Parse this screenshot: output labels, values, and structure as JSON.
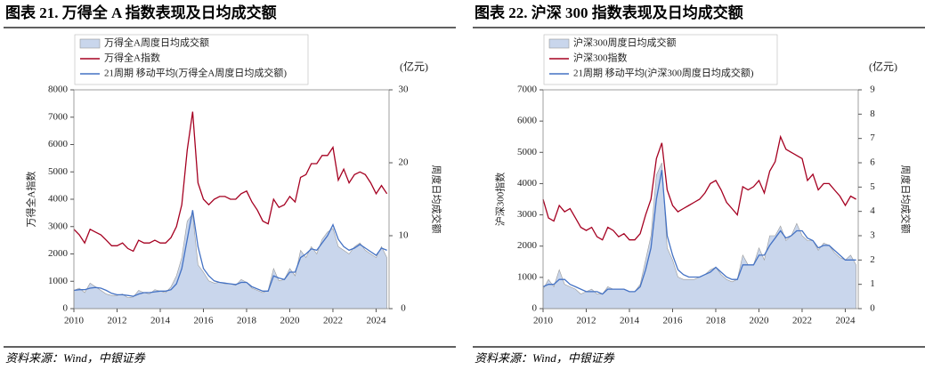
{
  "chart_data": [
    {
      "type": "combo",
      "title": "图表 21. 万得全 A 指数表现及日均成交额",
      "source": "资料来源：Wind，中银证券",
      "ylabel": "万得全A指数",
      "y2label": "周度日均成交额",
      "y2_unit": "(亿元)",
      "x": [
        2010,
        2010.25,
        2010.5,
        2010.75,
        2011,
        2011.25,
        2011.5,
        2011.75,
        2012,
        2012.25,
        2012.5,
        2012.75,
        2013,
        2013.25,
        2013.5,
        2013.75,
        2014,
        2014.25,
        2014.5,
        2014.75,
        2015,
        2015.25,
        2015.5,
        2015.75,
        2016,
        2016.25,
        2016.5,
        2016.75,
        2017,
        2017.25,
        2017.5,
        2017.75,
        2018,
        2018.25,
        2018.5,
        2018.75,
        2019,
        2019.25,
        2019.5,
        2019.75,
        2020,
        2020.25,
        2020.5,
        2020.75,
        2021,
        2021.25,
        2021.5,
        2021.75,
        2022,
        2022.25,
        2022.5,
        2022.75,
        2023,
        2023.25,
        2023.5,
        2023.75,
        2024,
        2024.25,
        2024.5
      ],
      "xlim": [
        2010,
        2024.6
      ],
      "xticks": [
        2010,
        2012,
        2014,
        2016,
        2018,
        2020,
        2022,
        2024
      ],
      "ylim": [
        0,
        8000
      ],
      "yticks": [
        0,
        1000,
        2000,
        3000,
        4000,
        5000,
        6000,
        7000,
        8000
      ],
      "y2lim": [
        0,
        30
      ],
      "y2ticks": [
        0,
        10,
        20,
        30
      ],
      "series": [
        {
          "name": "万得全A周度日均成交额",
          "type": "area",
          "axis": "y2",
          "color": "#c9d6ec",
          "values": [
            2.5,
            2.8,
            2.2,
            3.5,
            3.0,
            2.5,
            2.0,
            1.8,
            1.8,
            2.0,
            1.5,
            1.6,
            2.5,
            2.2,
            2.0,
            2.6,
            2.4,
            2.2,
            3.0,
            4.5,
            7.0,
            12.0,
            13.0,
            6.0,
            5.0,
            3.8,
            3.5,
            3.6,
            3.4,
            3.4,
            3.2,
            4.0,
            3.6,
            2.8,
            2.5,
            2.2,
            2.5,
            5.5,
            3.8,
            4.0,
            5.5,
            4.5,
            8.0,
            7.0,
            8.5,
            7.5,
            9.5,
            10.5,
            11.0,
            8.5,
            8.0,
            7.5,
            8.5,
            9.0,
            8.0,
            7.5,
            7.0,
            8.5,
            7.0
          ]
        },
        {
          "name": "万得全A指数",
          "type": "line",
          "color": "#a50021",
          "values": [
            2900,
            2700,
            2400,
            2900,
            2800,
            2700,
            2500,
            2300,
            2300,
            2400,
            2200,
            2100,
            2500,
            2400,
            2400,
            2500,
            2400,
            2400,
            2600,
            3000,
            3800,
            5800,
            7200,
            4600,
            4000,
            3800,
            4000,
            4100,
            4100,
            4000,
            4000,
            4200,
            4300,
            3900,
            3600,
            3200,
            3100,
            4000,
            3700,
            3800,
            4100,
            3900,
            4800,
            4900,
            5300,
            5300,
            5600,
            5600,
            5900,
            4700,
            5100,
            4600,
            4900,
            5000,
            4900,
            4600,
            4200,
            4500,
            4200
          ]
        },
        {
          "name": "21周期 移动平均(万得全A周度日均成交额)",
          "type": "line",
          "axis": "y2",
          "color": "#4472c4",
          "values": [
            2.5,
            2.6,
            2.6,
            2.8,
            2.9,
            2.8,
            2.5,
            2.1,
            1.9,
            1.9,
            1.8,
            1.7,
            2.0,
            2.2,
            2.2,
            2.3,
            2.4,
            2.4,
            2.6,
            3.4,
            5.5,
            9.5,
            13.5,
            8.5,
            5.5,
            4.5,
            3.8,
            3.6,
            3.5,
            3.4,
            3.3,
            3.6,
            3.6,
            3.0,
            2.7,
            2.4,
            2.4,
            4.5,
            4.2,
            4.0,
            5.0,
            5.0,
            7.0,
            7.5,
            8.2,
            8.0,
            9.0,
            10.0,
            11.5,
            9.5,
            8.5,
            8.0,
            8.3,
            8.8,
            8.3,
            7.8,
            7.3,
            8.3,
            8.0
          ]
        }
      ]
    },
    {
      "type": "combo",
      "title": "图表 22. 沪深 300 指数表现及日均成交额",
      "source": "资料来源：Wind，中银证券",
      "ylabel": "沪深300指数",
      "y2label": "周度日均成交额",
      "y2_unit": "(亿元)",
      "x": [
        2010,
        2010.25,
        2010.5,
        2010.75,
        2011,
        2011.25,
        2011.5,
        2011.75,
        2012,
        2012.25,
        2012.5,
        2012.75,
        2013,
        2013.25,
        2013.5,
        2013.75,
        2014,
        2014.25,
        2014.5,
        2014.75,
        2015,
        2015.25,
        2015.5,
        2015.75,
        2016,
        2016.25,
        2016.5,
        2016.75,
        2017,
        2017.25,
        2017.5,
        2017.75,
        2018,
        2018.25,
        2018.5,
        2018.75,
        2019,
        2019.25,
        2019.5,
        2019.75,
        2020,
        2020.25,
        2020.5,
        2020.75,
        2021,
        2021.25,
        2021.5,
        2021.75,
        2022,
        2022.25,
        2022.5,
        2022.75,
        2023,
        2023.25,
        2023.5,
        2023.75,
        2024,
        2024.25,
        2024.5
      ],
      "xlim": [
        2010,
        2024.6
      ],
      "xticks": [
        2010,
        2012,
        2014,
        2016,
        2018,
        2020,
        2022,
        2024
      ],
      "ylim": [
        0,
        7000
      ],
      "yticks": [
        0,
        1000,
        2000,
        3000,
        4000,
        5000,
        6000,
        7000
      ],
      "y2lim": [
        0,
        9
      ],
      "y2ticks": [
        0,
        1,
        2,
        3,
        4,
        5,
        6,
        7,
        8,
        9
      ],
      "series": [
        {
          "name": "沪深300周度日均成交额",
          "type": "area",
          "axis": "y2",
          "color": "#c9d6ec",
          "values": [
            0.8,
            1.2,
            0.9,
            1.6,
            1.0,
            0.9,
            0.8,
            0.6,
            0.7,
            0.8,
            0.6,
            0.6,
            0.9,
            0.8,
            0.8,
            0.8,
            0.7,
            0.7,
            1.0,
            2.0,
            3.0,
            5.5,
            6.0,
            2.5,
            2.0,
            1.3,
            1.2,
            1.2,
            1.2,
            1.3,
            1.4,
            1.6,
            1.7,
            1.4,
            1.2,
            1.1,
            1.2,
            2.2,
            1.8,
            1.8,
            2.5,
            2.0,
            3.0,
            3.0,
            3.4,
            2.8,
            3.0,
            3.5,
            3.0,
            2.8,
            2.8,
            2.4,
            2.7,
            2.6,
            2.3,
            2.1,
            2.0,
            2.2,
            1.8
          ]
        },
        {
          "name": "沪深300指数",
          "type": "line",
          "color": "#a50021",
          "values": [
            3500,
            2900,
            2800,
            3300,
            3100,
            3200,
            2900,
            2600,
            2500,
            2600,
            2300,
            2200,
            2600,
            2500,
            2300,
            2400,
            2200,
            2200,
            2400,
            3000,
            3500,
            4800,
            5300,
            3800,
            3300,
            3100,
            3200,
            3300,
            3400,
            3500,
            3700,
            4000,
            4100,
            3800,
            3400,
            3200,
            3000,
            3900,
            3800,
            3900,
            4100,
            3700,
            4400,
            4700,
            5500,
            5100,
            5000,
            4900,
            4800,
            4100,
            4300,
            3800,
            4000,
            4000,
            3800,
            3600,
            3300,
            3600,
            3500
          ]
        },
        {
          "name": "21周期 移动平均(沪深300周度日均成交额)",
          "type": "line",
          "axis": "y2",
          "color": "#4472c4",
          "values": [
            0.9,
            1.0,
            1.0,
            1.2,
            1.2,
            1.0,
            0.9,
            0.8,
            0.7,
            0.7,
            0.7,
            0.6,
            0.8,
            0.8,
            0.8,
            0.8,
            0.7,
            0.7,
            0.9,
            1.6,
            2.5,
            4.5,
            5.7,
            3.0,
            2.2,
            1.6,
            1.4,
            1.3,
            1.3,
            1.3,
            1.4,
            1.5,
            1.7,
            1.5,
            1.3,
            1.2,
            1.2,
            1.8,
            1.8,
            1.8,
            2.2,
            2.2,
            2.6,
            2.9,
            3.2,
            2.9,
            3.0,
            3.2,
            3.2,
            2.9,
            2.8,
            2.5,
            2.6,
            2.6,
            2.4,
            2.2,
            2.0,
            2.0,
            2.0
          ]
        }
      ]
    }
  ]
}
